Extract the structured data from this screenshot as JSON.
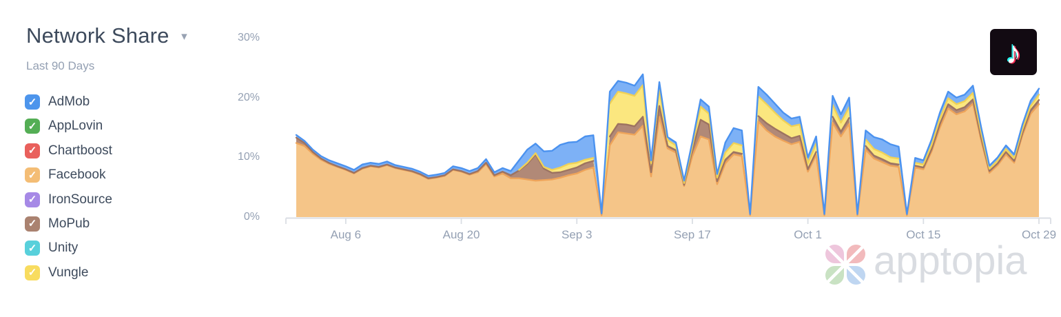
{
  "header": {
    "title": "Network Share",
    "dropdown_glyph": "▾",
    "subtitle": "Last 90 Days"
  },
  "legend": {
    "checkmark_glyph": "✓",
    "items": [
      {
        "label": "AdMob",
        "color": "#4d95ec",
        "checked": true
      },
      {
        "label": "AppLovin",
        "color": "#54ae55",
        "checked": true
      },
      {
        "label": "Chartboost",
        "color": "#e9605c",
        "checked": true
      },
      {
        "label": "Facebook",
        "color": "#f4bd75",
        "checked": true
      },
      {
        "label": "IronSource",
        "color": "#a689e6",
        "checked": true
      },
      {
        "label": "MoPub",
        "color": "#aa8270",
        "checked": true
      },
      {
        "label": "Unity",
        "color": "#58d0db",
        "checked": true
      },
      {
        "label": "Vungle",
        "color": "#f8dc5f",
        "checked": true
      }
    ]
  },
  "tiktok_badge": {
    "glyph": "♪",
    "background": "#120a12",
    "accent_cyan": "#25f4ee",
    "accent_pink": "#fe2c55"
  },
  "watermark": {
    "text": "apptopia",
    "text_color": "#d9dce1",
    "petal_colors": [
      "#eec6dc",
      "#f2babc",
      "#c9e2c3",
      "#bfd6f1"
    ]
  },
  "chart_data": {
    "type": "area",
    "stacked": true,
    "title": "Network Share",
    "period": "Last 90 Days",
    "unit": "%",
    "grid": false,
    "legend_position": "left",
    "x_axis": {
      "span_days": 90,
      "tick_labels": [
        "Aug 6",
        "Aug 20",
        "Sep 3",
        "Sep 17",
        "Oct 1",
        "Oct 15",
        "Oct 29"
      ],
      "tick_days": [
        6,
        20,
        34,
        48,
        62,
        76,
        90
      ],
      "axis_color": "#dadee4"
    },
    "y_axis": {
      "tick_labels": [
        "30%",
        "20%",
        "10%",
        "0%"
      ],
      "tick_values": [
        30,
        20,
        10,
        0
      ],
      "range": [
        0,
        30
      ]
    },
    "stack_order_bottom_to_top": [
      "Facebook",
      "MoPub",
      "Vungle",
      "AdMob"
    ],
    "series": [
      {
        "name": "Facebook",
        "fill": "#f5c588",
        "stroke": "#eea45a",
        "values": [
          12.4,
          11.9,
          10.6,
          9.6,
          8.9,
          8.4,
          7.9,
          7.3,
          8.1,
          8.5,
          8.3,
          8.7,
          8.2,
          7.9,
          7.6,
          7.1,
          6.4,
          6.6,
          6.9,
          7.9,
          7.6,
          7.1,
          7.5,
          8.9,
          6.8,
          7.3,
          6.5,
          6.5,
          6.3,
          6.1,
          6.2,
          6.3,
          6.6,
          7.0,
          7.3,
          7.9,
          8.3,
          0.3,
          12.0,
          14.2,
          14.0,
          13.8,
          15.3,
          6.8,
          16.8,
          11.5,
          10.8,
          5.2,
          10.2,
          13.5,
          13.0,
          5.5,
          9.0,
          10.5,
          10.2,
          0.3,
          16.0,
          14.5,
          13.5,
          12.8,
          12.2,
          12.6,
          7.6,
          10.4,
          0.3,
          15.8,
          13.5,
          15.6,
          0.3,
          11.3,
          9.8,
          9.2,
          8.6,
          8.4,
          0.3,
          8.3,
          8.0,
          11.0,
          15.0,
          18.2,
          17.2,
          17.7,
          19.0,
          12.8,
          7.4,
          8.7,
          10.5,
          9.1,
          13.7,
          17.3,
          18.9
        ]
      },
      {
        "name": "MoPub",
        "fill": "#b18977",
        "stroke": "#9d7361",
        "values": [
          0.9,
          0.5,
          0.3,
          0.2,
          0.15,
          0.1,
          0.1,
          0.1,
          0.1,
          0.1,
          0.1,
          0.1,
          0.1,
          0.1,
          0.1,
          0.1,
          0.1,
          0.1,
          0.1,
          0.1,
          0.1,
          0.1,
          0.2,
          0.2,
          0.2,
          0.3,
          0.5,
          1.3,
          2.6,
          4.4,
          1.9,
          1.1,
          0.9,
          0.9,
          1.0,
          1.1,
          1.1,
          0.05,
          1.5,
          1.4,
          1.5,
          1.4,
          1.5,
          0.7,
          1.8,
          0.4,
          0.4,
          0.2,
          1.0,
          2.8,
          2.5,
          0.5,
          0.6,
          0.4,
          0.4,
          0.05,
          0.9,
          1.2,
          1.3,
          1.2,
          1.0,
          1.0,
          0.4,
          0.5,
          0.05,
          1.0,
          0.8,
          1.0,
          0.05,
          0.6,
          0.5,
          0.5,
          0.4,
          0.4,
          0.05,
          0.3,
          0.3,
          0.4,
          0.6,
          0.7,
          0.7,
          0.7,
          0.7,
          0.5,
          0.3,
          0.3,
          0.4,
          0.3,
          0.4,
          0.6,
          0.7
        ]
      },
      {
        "name": "Vungle",
        "fill": "#fbe77f",
        "stroke": "#f0d156",
        "values": [
          0.15,
          0,
          0,
          0,
          0,
          0,
          0,
          0,
          0,
          0,
          0,
          0,
          0,
          0,
          0,
          0,
          0,
          0,
          0,
          0,
          0,
          0,
          0,
          0,
          0,
          0,
          0,
          0.1,
          0.2,
          0.2,
          0.3,
          0.5,
          0.8,
          1.0,
          0.8,
          0.6,
          0.5,
          0.05,
          5.5,
          5.4,
          5.2,
          5.1,
          5.3,
          1.5,
          2.8,
          1.0,
          0.8,
          0.3,
          0.7,
          2.2,
          1.8,
          0.6,
          1.2,
          1.5,
          1.4,
          0.05,
          3.3,
          3.2,
          2.7,
          2.2,
          2.0,
          1.9,
          1.0,
          1.4,
          0.05,
          2.0,
          1.5,
          1.8,
          0.05,
          1.1,
          1.1,
          1.1,
          1.0,
          1.0,
          0.05,
          0.5,
          0.5,
          0.7,
          0.9,
          1.0,
          1.0,
          1.0,
          1.1,
          0.8,
          0.4,
          0.5,
          0.5,
          0.5,
          0.6,
          0.7,
          0.9
        ]
      },
      {
        "name": "AdMob",
        "fill": "#7db1f6",
        "stroke": "#4b92ef",
        "values": [
          0.3,
          0.35,
          0.4,
          0.4,
          0.45,
          0.5,
          0.5,
          0.5,
          0.6,
          0.5,
          0.5,
          0.5,
          0.4,
          0.4,
          0.4,
          0.4,
          0.4,
          0.4,
          0.4,
          0.5,
          0.5,
          0.5,
          0.5,
          0.6,
          0.5,
          0.6,
          0.7,
          1.6,
          2.2,
          1.6,
          2.6,
          3.2,
          3.8,
          3.6,
          3.5,
          3.9,
          3.8,
          0.2,
          2.0,
          1.8,
          1.8,
          1.7,
          1.8,
          0.5,
          1.2,
          0.5,
          0.5,
          0.4,
          0.7,
          1.2,
          1.2,
          0.6,
          1.7,
          2.5,
          2.5,
          0.1,
          1.6,
          1.6,
          1.5,
          1.3,
          1.3,
          1.3,
          1.0,
          1.2,
          0.1,
          1.5,
          1.4,
          1.6,
          0.1,
          1.5,
          2.0,
          2.2,
          2.2,
          2.0,
          0.1,
          0.8,
          0.7,
          0.9,
          1.0,
          1.1,
          1.1,
          1.1,
          1.2,
          0.9,
          0.5,
          0.5,
          0.6,
          0.6,
          0.8,
          0.9,
          1.0
        ]
      },
      {
        "name": "AppLovin",
        "color": "#54ae55",
        "constant_value": 0
      },
      {
        "name": "Chartboost",
        "color": "#e9605c",
        "constant_value": 0
      },
      {
        "name": "IronSource",
        "color": "#a689e6",
        "constant_value": 0
      },
      {
        "name": "Unity",
        "color": "#58d0db",
        "constant_value": 0
      }
    ]
  }
}
